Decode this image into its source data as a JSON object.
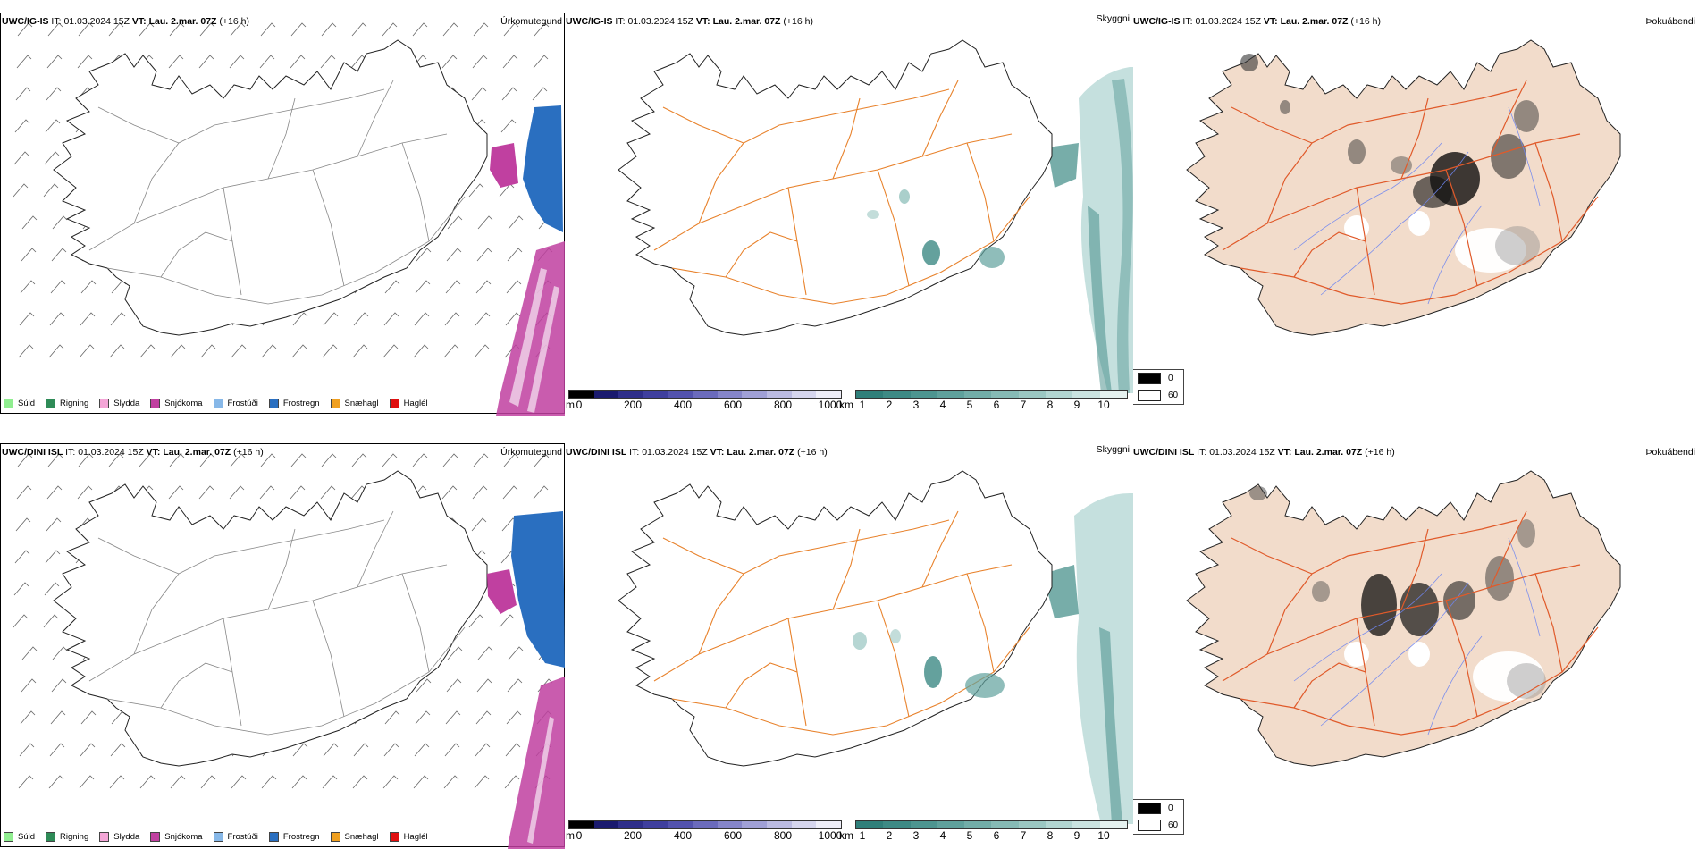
{
  "rows": [
    {
      "model": "UWC/IG-IS",
      "it_label": "IT:",
      "it_value": "01.03.2024 15Z",
      "vt_label": "VT:",
      "vt_value": "Lau. 2.mar. 07Z",
      "lead": "(+16 h)"
    },
    {
      "model": "UWC/DINI ISL",
      "it_label": "IT:",
      "it_value": "01.03.2024 15Z",
      "vt_label": "VT:",
      "vt_value": "Lau. 2.mar. 07Z",
      "lead": "(+16 h)"
    }
  ],
  "panel_titles": {
    "precip": "Úrkomutegund",
    "visibility": "Skyggni",
    "fog": "Þokuábendi"
  },
  "precip_legend": [
    {
      "label": "Súld",
      "color": "#90ee90"
    },
    {
      "label": "Rigning",
      "color": "#2e8b57"
    },
    {
      "label": "Slydda",
      "color": "#f4a6d7"
    },
    {
      "label": "Snjókoma",
      "color": "#c040a0"
    },
    {
      "label": "Frostúði",
      "color": "#87b8e8"
    },
    {
      "label": "Frostregn",
      "color": "#2a6fc0"
    },
    {
      "label": "Snæhagl",
      "color": "#f0a020"
    },
    {
      "label": "Haglél",
      "color": "#e01010"
    }
  ],
  "height_colorbar": {
    "unit": "m",
    "ticks": [
      "0",
      "200",
      "400",
      "600",
      "800",
      "1000"
    ],
    "colors": [
      "#000000",
      "#1a1a6e",
      "#2e2e8a",
      "#3f3f9e",
      "#5353ae",
      "#6b6bbc",
      "#8585c9",
      "#a0a0d6",
      "#bbbbe2",
      "#d6d6ee",
      "#eeeef8"
    ]
  },
  "visibility_colorbar": {
    "unit": "km",
    "ticks": [
      "1",
      "2",
      "3",
      "4",
      "5",
      "6",
      "7",
      "8",
      "9",
      "10"
    ],
    "colors": [
      "#2f7f7a",
      "#3d8a85",
      "#4d9590",
      "#5fa19c",
      "#72ada8",
      "#86bab5",
      "#9bc7c2",
      "#b2d5d1",
      "#cae3e0",
      "#e4f1ef"
    ]
  },
  "fog_legend": [
    {
      "label": "0",
      "color": "#000000"
    },
    {
      "label": "60",
      "color": "#ffffff"
    }
  ]
}
